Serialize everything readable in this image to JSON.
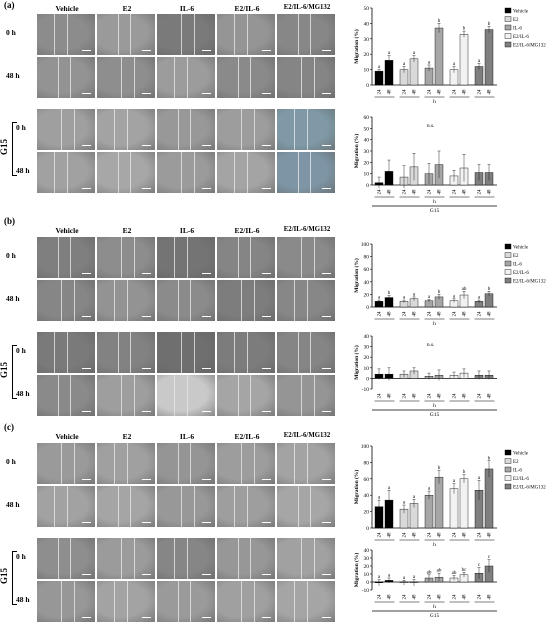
{
  "figure": {
    "columns": [
      "Vehicle",
      "E2",
      "IL-6",
      "E2/IL-6",
      "E2/IL-6/MG132"
    ],
    "rows": [
      "0 h",
      "48 h",
      "0 h",
      "48 h"
    ],
    "group_label": "G15",
    "legend": [
      "Vehicle",
      "E2",
      "IL-6",
      "E2/IL-6",
      "E2/IL-6/MG132"
    ],
    "colors": {
      "vehicle": "#000000",
      "e2": "#d9d9d9",
      "il6": "#a6a6a6",
      "e2il6": "#f2f2f2",
      "mg132": "#7f7f7f"
    },
    "panels": [
      {
        "label": "(a)",
        "image_tints": [
          "#8c8c8c",
          "#9a9a9a",
          "#7a7a7a",
          "#959595",
          "#878787",
          "#939393",
          "#8e8e8e",
          "#9c9c9c",
          "#8a8a8a",
          "#858585",
          "#9f9f9f",
          "#a3a3a3",
          "#989898",
          "#9d9d9d",
          "#7f9aa6",
          "#a1a1a1",
          "#a7a7a7",
          "#9b9b9b",
          "#a4a4a4",
          "#7d95a5"
        ]
      },
      {
        "label": "(b)",
        "image_tints": [
          "#7f7f7f",
          "#8d8d8d",
          "#747474",
          "#858585",
          "#8a8a8a",
          "#868686",
          "#939393",
          "#8b8b8b",
          "#7d7d7d",
          "#878787",
          "#7a7a7a",
          "#828282",
          "#6f6f6f",
          "#7c7c7c",
          "#858585",
          "#8a8a8a",
          "#9e9e9e",
          "#c9c9c9",
          "#a5a5a5",
          "#959595"
        ]
      },
      {
        "label": "(c)",
        "image_tints": [
          "#9a9a9a",
          "#a0a0a0",
          "#959595",
          "#9d9d9d",
          "#a3a3a3",
          "#a2a2a2",
          "#a5a5a5",
          "#989898",
          "#9e9e9e",
          "#a6a6a6",
          "#8e8e8e",
          "#9b9b9b",
          "#868686",
          "#979797",
          "#a1a1a1",
          "#979797",
          "#a3a3a3",
          "#9a9a9a",
          "#a0a0a0",
          "#a5a5a5"
        ]
      }
    ]
  },
  "chart_data": [
    {
      "panel": "(a)",
      "type": "bar",
      "ylabel": "Migration (%)",
      "xlabel": "h",
      "ylim": [
        0,
        50
      ],
      "yticks": [
        0,
        10,
        20,
        30,
        40,
        50
      ],
      "categories": [
        "24",
        "48",
        "24",
        "48",
        "24",
        "48",
        "24",
        "48",
        "24",
        "48"
      ],
      "series_index": [
        0,
        0,
        1,
        1,
        2,
        2,
        3,
        3,
        4,
        4
      ],
      "values": [
        9,
        16,
        10,
        17,
        11,
        37,
        10,
        33,
        12,
        36
      ],
      "errors": [
        1,
        3,
        2,
        2,
        2,
        3,
        2,
        2,
        2,
        2
      ],
      "letters": [
        "a",
        "a",
        "a",
        "a",
        "a",
        "b",
        "a",
        "b",
        "a",
        "b"
      ]
    },
    {
      "panel": "(a)",
      "type": "bar",
      "ylabel": "Migration (%)",
      "xlabel": "h",
      "group": "G15",
      "ylim": [
        0,
        60
      ],
      "yticks": [
        0,
        10,
        20,
        30,
        40,
        50,
        60
      ],
      "categories": [
        "24",
        "48",
        "24",
        "48",
        "24",
        "48",
        "24",
        "48",
        "24",
        "48"
      ],
      "series_index": [
        0,
        0,
        1,
        1,
        2,
        2,
        3,
        3,
        4,
        4
      ],
      "values": [
        2,
        12,
        7,
        16,
        10,
        18,
        8,
        15,
        11,
        11
      ],
      "errors": [
        5,
        10,
        10,
        12,
        9,
        12,
        5,
        12,
        7,
        7
      ],
      "letters": [
        "",
        "",
        "",
        "",
        "",
        "",
        "",
        "",
        "",
        ""
      ],
      "annotation": "n.s."
    },
    {
      "panel": "(b)",
      "type": "bar",
      "ylabel": "Migration (%)",
      "xlabel": "h",
      "ylim": [
        0,
        100
      ],
      "yticks": [
        0,
        20,
        40,
        60,
        80,
        100
      ],
      "categories": [
        "24",
        "48",
        "24",
        "48",
        "24",
        "48",
        "24",
        "48",
        "24",
        "48"
      ],
      "series_index": [
        0,
        0,
        1,
        1,
        2,
        2,
        3,
        3,
        4,
        4
      ],
      "values": [
        9,
        15,
        9,
        13,
        10,
        16,
        10,
        19,
        9,
        21
      ],
      "errors": [
        2,
        3,
        2,
        3,
        2,
        4,
        3,
        6,
        2,
        4
      ],
      "letters": [
        "a",
        "b",
        "a",
        "a",
        "a",
        "b",
        "a",
        "ab",
        "a",
        "b"
      ]
    },
    {
      "panel": "(b)",
      "type": "bar",
      "ylabel": "Migration (%)",
      "xlabel": "h",
      "group": "G15",
      "ylim": [
        -10,
        40
      ],
      "yticks": [
        -10,
        0,
        10,
        20,
        30,
        40
      ],
      "categories": [
        "24",
        "48",
        "24",
        "48",
        "24",
        "48",
        "24",
        "48",
        "24",
        "48"
      ],
      "series_index": [
        0,
        0,
        1,
        1,
        2,
        2,
        3,
        3,
        4,
        4
      ],
      "values": [
        4,
        4,
        4,
        7,
        2,
        3,
        3,
        5,
        3,
        3
      ],
      "errors": [
        5,
        6,
        3,
        3,
        3,
        5,
        3,
        4,
        4,
        4
      ],
      "letters": [
        "",
        "",
        "",
        "",
        "",
        "",
        "",
        "",
        "",
        ""
      ],
      "annotation": "n.s."
    },
    {
      "panel": "(c)",
      "type": "bar",
      "ylabel": "Migration (%)",
      "xlabel": "h",
      "ylim": [
        0,
        100
      ],
      "yticks": [
        0,
        20,
        40,
        60,
        80,
        100
      ],
      "categories": [
        "24",
        "48",
        "24",
        "48",
        "24",
        "48",
        "24",
        "48",
        "24",
        "48"
      ],
      "series_index": [
        0,
        0,
        1,
        1,
        2,
        2,
        3,
        3,
        4,
        4
      ],
      "values": [
        26,
        34,
        23,
        30,
        40,
        62,
        48,
        60,
        46,
        72
      ],
      "errors": [
        8,
        12,
        5,
        5,
        5,
        8,
        6,
        5,
        12,
        10
      ],
      "letters": [
        "a",
        "a",
        "a",
        "a",
        "a",
        "b",
        "a",
        "b",
        "a",
        "b"
      ]
    },
    {
      "panel": "(c)",
      "type": "bar",
      "ylabel": "Migration (%)",
      "xlabel": "h",
      "group": "G15",
      "ylim": [
        -10,
        40
      ],
      "yticks": [
        -10,
        0,
        10,
        20,
        30,
        40
      ],
      "categories": [
        "24",
        "48",
        "24",
        "48",
        "24",
        "48",
        "24",
        "48",
        "24",
        "48"
      ],
      "series_index": [
        0,
        0,
        1,
        1,
        2,
        2,
        3,
        3,
        4,
        4
      ],
      "values": [
        -1,
        2,
        -1,
        -1,
        5,
        6,
        5,
        9,
        11,
        20
      ],
      "errors": [
        4,
        3,
        3,
        4,
        4,
        5,
        3,
        3,
        7,
        8
      ],
      "letters": [
        "a",
        "a",
        "a",
        "a",
        "ab",
        "ab",
        "ab",
        "bc",
        "c",
        "c"
      ]
    }
  ]
}
